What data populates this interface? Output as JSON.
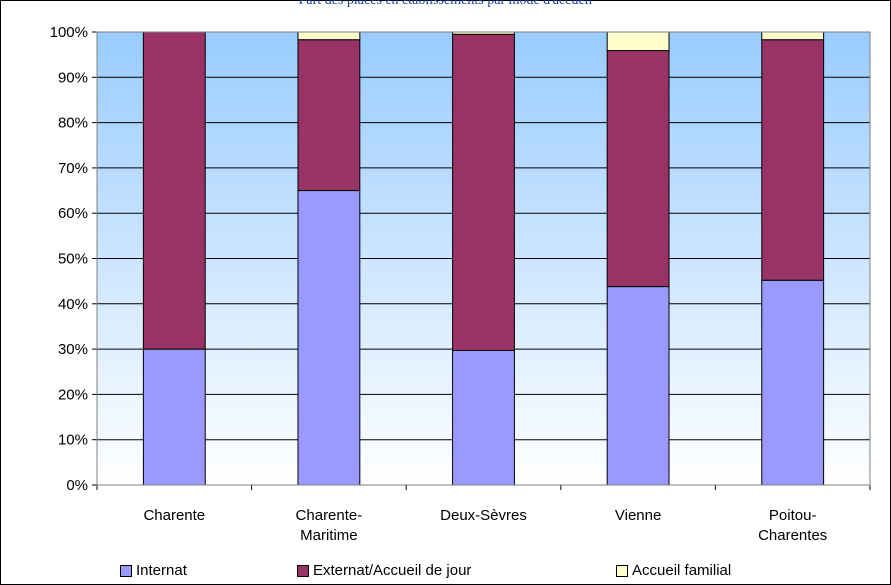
{
  "chart_data": {
    "type": "bar",
    "stacked": true,
    "title": "Part des places en établissements par mode d'accueil",
    "categories": [
      "Charente",
      "Charente-Maritime",
      "Deux-Sèvres",
      "Vienne",
      "Poitou-Charentes"
    ],
    "category_lines": [
      [
        "Charente"
      ],
      [
        "Charente-",
        "Maritime"
      ],
      [
        "Deux-Sèvres"
      ],
      [
        "Vienne"
      ],
      [
        "Poitou-",
        "Charentes"
      ]
    ],
    "series": [
      {
        "name": "Internat",
        "color": "#9999ff",
        "values": [
          30,
          65,
          29.7,
          43.8,
          45.2
        ]
      },
      {
        "name": "Externat/Accueil de jour",
        "color": "#993366",
        "values": [
          70,
          33.3,
          69.8,
          52.1,
          53.1
        ]
      },
      {
        "name": "Accueil familial",
        "color": "#ffffcc",
        "values": [
          0,
          1.7,
          0.5,
          4.1,
          1.7
        ]
      }
    ],
    "ylim": [
      0,
      100
    ],
    "yticks": [
      "0%",
      "10%",
      "20%",
      "30%",
      "40%",
      "50%",
      "60%",
      "70%",
      "80%",
      "90%",
      "100%"
    ],
    "grid": true,
    "legend_position": "bottom",
    "background": [
      "#99ccff",
      "#ffffff"
    ]
  }
}
